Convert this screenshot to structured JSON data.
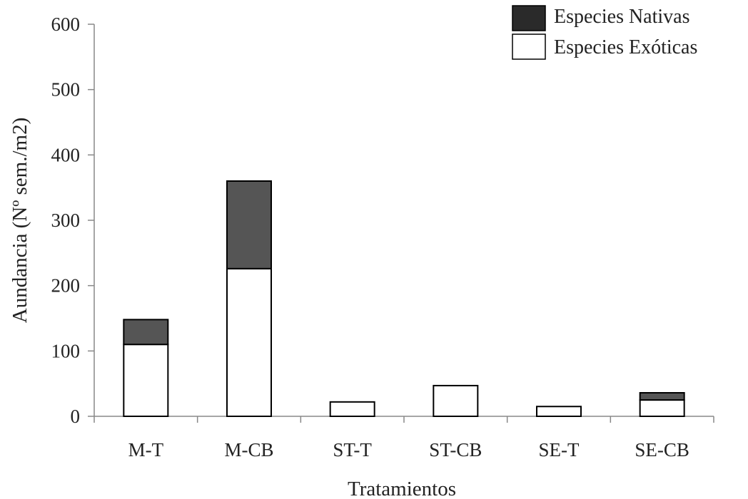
{
  "chart_data": {
    "type": "bar",
    "stacked": true,
    "categories": [
      "M-T",
      "M-CB",
      "ST-T",
      "ST-CB",
      "SE-T",
      "SE-CB"
    ],
    "series": [
      {
        "name": "Especies Exóticas",
        "values": [
          110,
          226,
          22,
          47,
          15,
          25
        ],
        "color": "#ffffff"
      },
      {
        "name": "Especies Nativas",
        "values": [
          38,
          134,
          0,
          0,
          0,
          11
        ],
        "color": "#555555"
      }
    ],
    "legend": {
      "position": "top-right",
      "entries": [
        {
          "label": "Especies Nativas",
          "color": "#2a2a2a"
        },
        {
          "label": "Especies Exóticas",
          "color": "#ffffff"
        }
      ]
    },
    "xlabel": "Tratamientos",
    "ylabel": "Aundancia (Nº sem./m2)",
    "ylim": [
      0,
      600
    ],
    "yticks": [
      0,
      100,
      200,
      300,
      400,
      500,
      600
    ],
    "grid": false
  }
}
